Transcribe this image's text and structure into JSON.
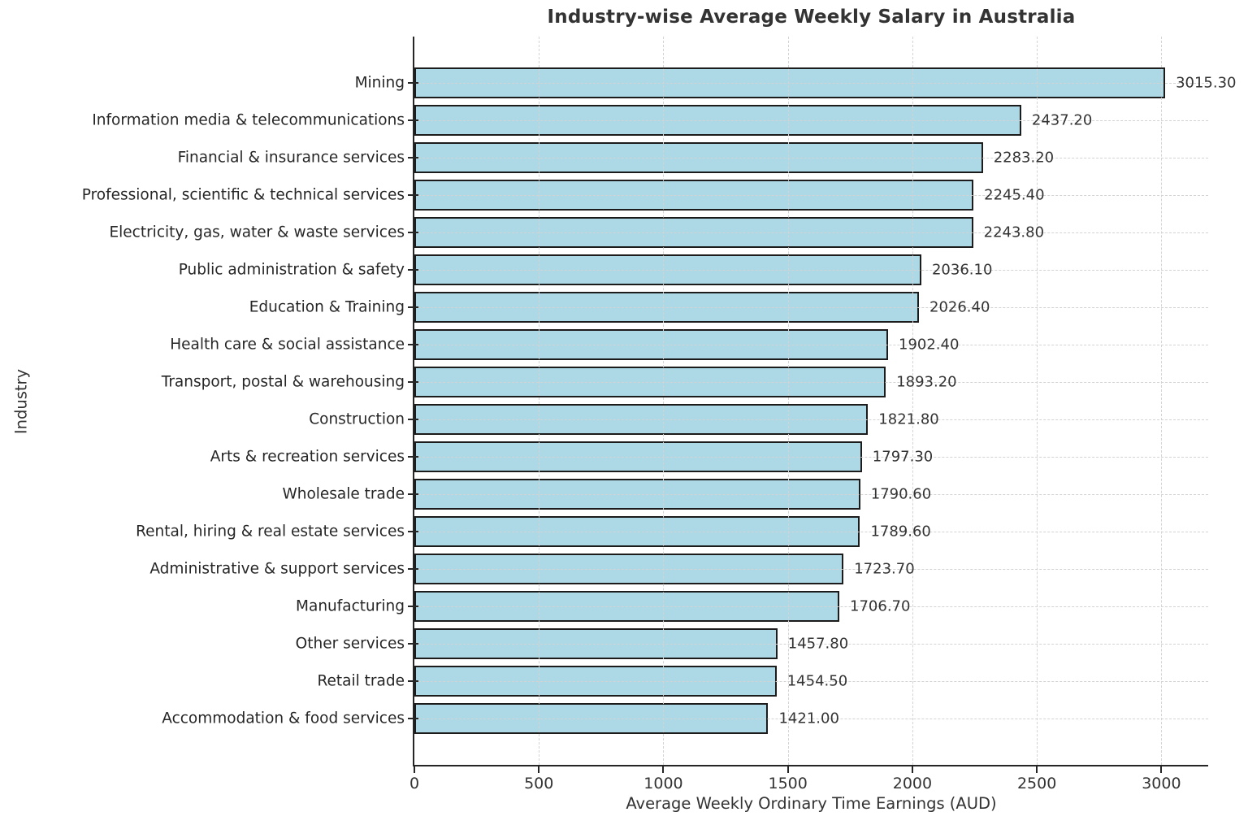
{
  "chart_data": {
    "type": "bar",
    "orientation": "horizontal",
    "title": "Industry-wise Average Weekly Salary in Australia",
    "xlabel": "Average Weekly Ordinary Time Earnings (AUD)",
    "ylabel": "Industry",
    "categories": [
      "Mining",
      "Information media & telecommunications",
      "Financial & insurance services",
      "Professional, scientific & technical services",
      "Electricity, gas, water & waste services",
      "Public administration & safety",
      "Education & Training",
      "Health care & social assistance",
      "Transport, postal & warehousing",
      "Construction",
      "Arts & recreation services",
      "Wholesale trade",
      "Rental, hiring & real estate services",
      "Administrative & support services",
      "Manufacturing",
      "Other services",
      "Retail trade",
      "Accommodation & food services"
    ],
    "values": [
      3015.3,
      2437.2,
      2283.2,
      2245.4,
      2243.8,
      2036.1,
      2026.4,
      1902.4,
      1893.2,
      1821.8,
      1797.3,
      1790.6,
      1789.6,
      1723.7,
      1706.7,
      1457.8,
      1454.5,
      1421.0
    ],
    "value_labels": [
      "3015.30",
      "2437.20",
      "2283.20",
      "2245.40",
      "2243.80",
      "2036.10",
      "2026.40",
      "1902.40",
      "1893.20",
      "1821.80",
      "1797.30",
      "1790.60",
      "1789.60",
      "1723.70",
      "1706.70",
      "1457.80",
      "1454.50",
      "1421.00"
    ],
    "xticks": [
      0,
      500,
      1000,
      1500,
      2000,
      2500,
      3000
    ],
    "xtick_labels": [
      "0",
      "500",
      "1000",
      "1500",
      "2000",
      "2500",
      "3000"
    ],
    "xlim": [
      0,
      3188
    ],
    "grid": {
      "style": "dashed",
      "vertical": true,
      "horizontal": true
    },
    "legend": "none",
    "colors": {
      "bar_fill": "#ADD8E6",
      "bar_edge": "#1c1c1c",
      "grid": "#d3d3d3",
      "axis": "#262626",
      "text": "#333333",
      "background": "#ffffff"
    }
  }
}
